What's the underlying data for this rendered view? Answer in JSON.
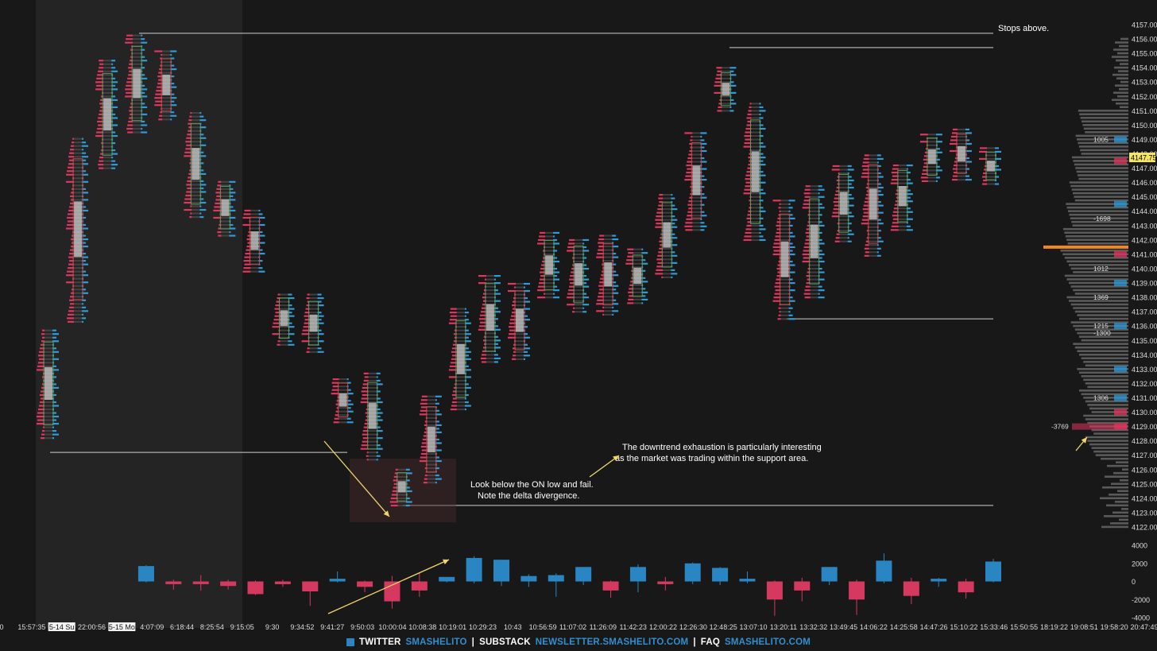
{
  "colors": {
    "background": "#181818",
    "session_shade": "#242424",
    "bid": "#e0365f",
    "ask": "#2f9bd9",
    "bar_up": "#2a86c3",
    "bar_down": "#d6395f",
    "annotation_text": "#ffffff",
    "arrow": "#f2d66b",
    "poc_line": "#f08a1e",
    "current_price_bg": "#f5e663",
    "footer_link": "#2f8fd0"
  },
  "footer": {
    "twitter_label": "TWITTER",
    "twitter_handle": "SMASHELITO",
    "substack_label": "SUBSTACK",
    "substack_url": "NEWSLETTER.SMASHELITO.COM",
    "faq_label": "FAQ",
    "faq_url": "SMASHELITO.COM",
    "separator": "|"
  },
  "chart_data": [
    {
      "type": "footprint candlestick",
      "y_axis": {
        "ticks": [
          "4157.00",
          "4156.00",
          "4155.00",
          "4154.00",
          "4153.00",
          "4152.00",
          "4151.00",
          "4150.00",
          "4149.00",
          "4148.00",
          "4147.00",
          "4146.00",
          "4145.00",
          "4144.00",
          "4143.00",
          "4142.00",
          "4141.00",
          "4140.00",
          "4139.00",
          "4138.00",
          "4137.00",
          "4136.00",
          "4135.00",
          "4134.00",
          "4133.00",
          "4132.00",
          "4131.00",
          "4130.00",
          "4129.00",
          "4128.00",
          "4127.00",
          "4126.00",
          "4125.00",
          "4124.00",
          "4123.00",
          "4122.00"
        ],
        "range": [
          4121.5,
          4157.3
        ]
      },
      "current_price": "4147.75",
      "x_axis": {
        "ticks": [
          "0",
          "15:57:35",
          "5-14 Su",
          "22:00:56",
          "5-15 Mo",
          "4:07:09",
          "6:18:44",
          "8:25:54",
          "9:15:05",
          "9:30",
          "9:34:52",
          "9:41:27",
          "9:50:03",
          "10:00:04",
          "10:08:38",
          "10:19:01",
          "10:29:23",
          "10:43",
          "10:56:59",
          "11:07:02",
          "11:26:09",
          "11:42:23",
          "12:00:22",
          "12:26:30",
          "12:48:25",
          "13:07:10",
          "13:20:11",
          "13:32:32",
          "13:49:45",
          "14:06:22",
          "14:25:58",
          "14:47:26",
          "15:10:22",
          "15:33:46",
          "15:50:55",
          "18:19:22",
          "19:08:51",
          "19:58:20",
          "20:47:49"
        ],
        "highlighted": [
          "5-14 Su",
          "5-15 Mo"
        ]
      },
      "candles_low_high": [
        [
          4128.2,
          4135.8
        ],
        [
          4136.3,
          4149.2
        ],
        [
          4147.0,
          4154.5
        ],
        [
          4149.5,
          4156.3
        ],
        [
          4150.4,
          4155.2
        ],
        [
          4143.6,
          4151.0
        ],
        [
          4142.3,
          4146.2
        ],
        [
          4139.8,
          4144.1
        ],
        [
          4134.7,
          4138.4
        ],
        [
          4134.2,
          4138.2
        ],
        [
          4129.3,
          4132.4
        ],
        [
          4126.7,
          4132.8
        ],
        [
          4123.5,
          4126.1
        ],
        [
          4125.1,
          4131.1
        ],
        [
          4130.2,
          4137.2
        ],
        [
          4133.5,
          4139.7
        ],
        [
          4133.7,
          4139.1
        ],
        [
          4138.0,
          4142.5
        ],
        [
          4137.0,
          4142.2
        ],
        [
          4136.8,
          4142.4
        ],
        [
          4137.6,
          4141.4
        ],
        [
          4139.4,
          4145.3
        ],
        [
          4142.7,
          4149.6
        ],
        [
          4151.0,
          4154.0
        ],
        [
          4142.0,
          4151.5
        ],
        [
          4136.5,
          4144.8
        ],
        [
          4138.0,
          4145.8
        ],
        [
          4141.9,
          4147.2
        ],
        [
          4140.9,
          4148.1
        ],
        [
          4142.7,
          4147.4
        ],
        [
          4146.1,
          4149.5
        ],
        [
          4146.2,
          4149.8
        ],
        [
          4145.9,
          4148.4
        ]
      ],
      "levels": [
        {
          "price": 4156.4,
          "label": "Stops above."
        },
        {
          "price": 4155.4,
          "label": ""
        },
        {
          "price": 4127.2,
          "label": ""
        },
        {
          "price": 4136.5,
          "label": ""
        },
        {
          "price": 4123.5,
          "label": ""
        }
      ],
      "annotations": [
        "Stops above.",
        "Look below the ON low and fail.",
        "Note the delta divergence.",
        "The downtrend exhaustion is particularly interesting",
        "as the market was trading within the support area."
      ],
      "volume_profile_labels": [
        {
          "price": 4149.0,
          "text": "1005"
        },
        {
          "price": 4143.5,
          "text": "-1698"
        },
        {
          "price": 4140.0,
          "text": "1012"
        },
        {
          "price": 4138.0,
          "text": "1369"
        },
        {
          "price": 4136.0,
          "text": "1215"
        },
        {
          "price": 4135.5,
          "text": "-1300"
        },
        {
          "price": 4131.0,
          "text": "1306"
        },
        {
          "price": 4129.0,
          "text": "-3769"
        }
      ],
      "poc_price": 4141.5
    },
    {
      "type": "bar",
      "title": "delta",
      "y_axis": {
        "ticks": [
          "4000",
          "2000",
          "0",
          "-2000",
          "-4000"
        ],
        "range": [
          -4000,
          4000
        ]
      },
      "values": [
        [
          0,
          0
        ],
        [
          0,
          0
        ],
        [
          0,
          0
        ],
        [
          0,
          0
        ],
        [
          0,
          0
        ],
        [
          1700,
          0
        ],
        [
          -300,
          0
        ],
        [
          -300,
          0
        ],
        [
          -500,
          0
        ],
        [
          -1400,
          0
        ],
        [
          -300,
          0
        ],
        [
          -1100,
          0
        ],
        [
          300,
          0
        ],
        [
          -600,
          0
        ],
        [
          -2200,
          0
        ],
        [
          -1000,
          0
        ],
        [
          500,
          0
        ],
        [
          2600,
          0
        ],
        [
          2400,
          0
        ],
        [
          600,
          0
        ],
        [
          700,
          0
        ],
        [
          1600,
          0
        ],
        [
          -1000,
          0
        ],
        [
          1600,
          0
        ],
        [
          -300,
          0
        ],
        [
          2000,
          0
        ],
        [
          1500,
          0
        ],
        [
          300,
          0
        ],
        [
          -2000,
          0
        ],
        [
          -1000,
          0
        ],
        [
          1600,
          0
        ],
        [
          -2000,
          0
        ],
        [
          2300,
          0
        ],
        [
          -1600,
          0
        ],
        [
          300,
          0
        ],
        [
          -1200,
          0
        ],
        [
          2200,
          0
        ]
      ],
      "wicks": [
        [
          0,
          0
        ],
        [
          0,
          0
        ],
        [
          0,
          0
        ],
        [
          0,
          0
        ],
        [
          0,
          0
        ],
        [
          -100,
          1800
        ],
        [
          -900,
          200
        ],
        [
          -1000,
          700
        ],
        [
          -900,
          200
        ],
        [
          -1500,
          100
        ],
        [
          -600,
          200
        ],
        [
          -2700,
          0
        ],
        [
          -100,
          1100
        ],
        [
          -1200,
          100
        ],
        [
          -3000,
          600
        ],
        [
          -1700,
          1000
        ],
        [
          -100,
          500
        ],
        [
          -200,
          2800
        ],
        [
          -500,
          2400
        ],
        [
          -600,
          800
        ],
        [
          -1700,
          900
        ],
        [
          -400,
          1600
        ],
        [
          -1800,
          100
        ],
        [
          -1200,
          1900
        ],
        [
          -1000,
          500
        ],
        [
          -300,
          2100
        ],
        [
          -400,
          1600
        ],
        [
          -200,
          1100
        ],
        [
          -3800,
          100
        ],
        [
          -2200,
          400
        ],
        [
          -400,
          1600
        ],
        [
          -3700,
          200
        ],
        [
          -200,
          3100
        ],
        [
          -2500,
          400
        ],
        [
          -600,
          400
        ],
        [
          -1900,
          300
        ],
        [
          -100,
          2500
        ]
      ]
    }
  ]
}
